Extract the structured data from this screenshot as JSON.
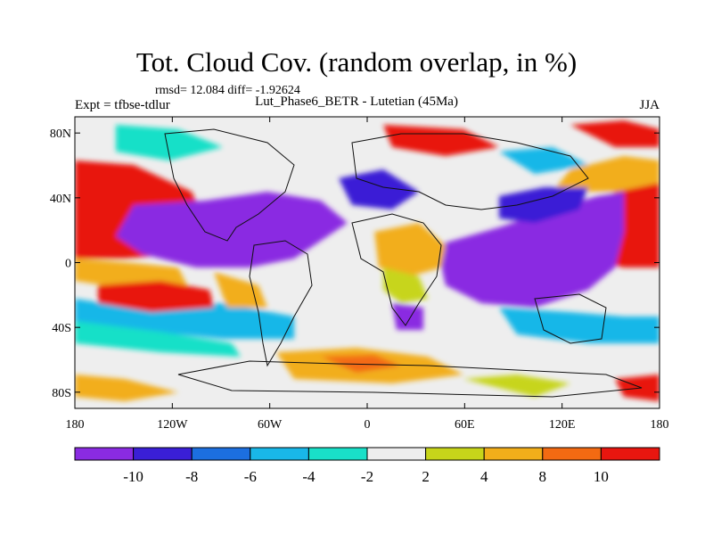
{
  "header": {
    "title": "Tot. Cloud Cov. (random overlap, in %)",
    "stats": "rmsd= 12.084 diff= -1.92624",
    "expt": "Expt = tfbse-tdlur",
    "subtitle": "Lut_Phase6_BETR - Lutetian (45Ma)",
    "season": "JJA"
  },
  "axes": {
    "lat_ticks": [
      "80N",
      "40N",
      "0",
      "40S",
      "80S"
    ],
    "lat_values": [
      80,
      40,
      0,
      -40,
      -80
    ],
    "lon_ticks": [
      "180",
      "120W",
      "60W",
      "0",
      "60E",
      "120E",
      "180"
    ],
    "lon_values": [
      -180,
      -120,
      -60,
      0,
      60,
      120,
      180
    ]
  },
  "colorbar": {
    "levels": [
      "-10",
      "-8",
      "-6",
      "-4",
      "-2",
      "2",
      "4",
      "8",
      "10"
    ],
    "colors": [
      "#8a2be2",
      "#3a1fd6",
      "#1c6fe0",
      "#19b7e8",
      "#19e0c8",
      "#eeeeee",
      "#c7d51a",
      "#f2ae1a",
      "#f36a12",
      "#e8160f"
    ]
  },
  "map_colors": {
    "purple": "#8a2be2",
    "blue": "#3a1fd6",
    "azure": "#1c6fe0",
    "cyan": "#19b7e8",
    "aqua": "#19e0c8",
    "neutral": "#eeeeee",
    "yellow": "#c7d51a",
    "orange": "#f2ae1a",
    "darkorange": "#f36a12",
    "red": "#e8160f"
  }
}
